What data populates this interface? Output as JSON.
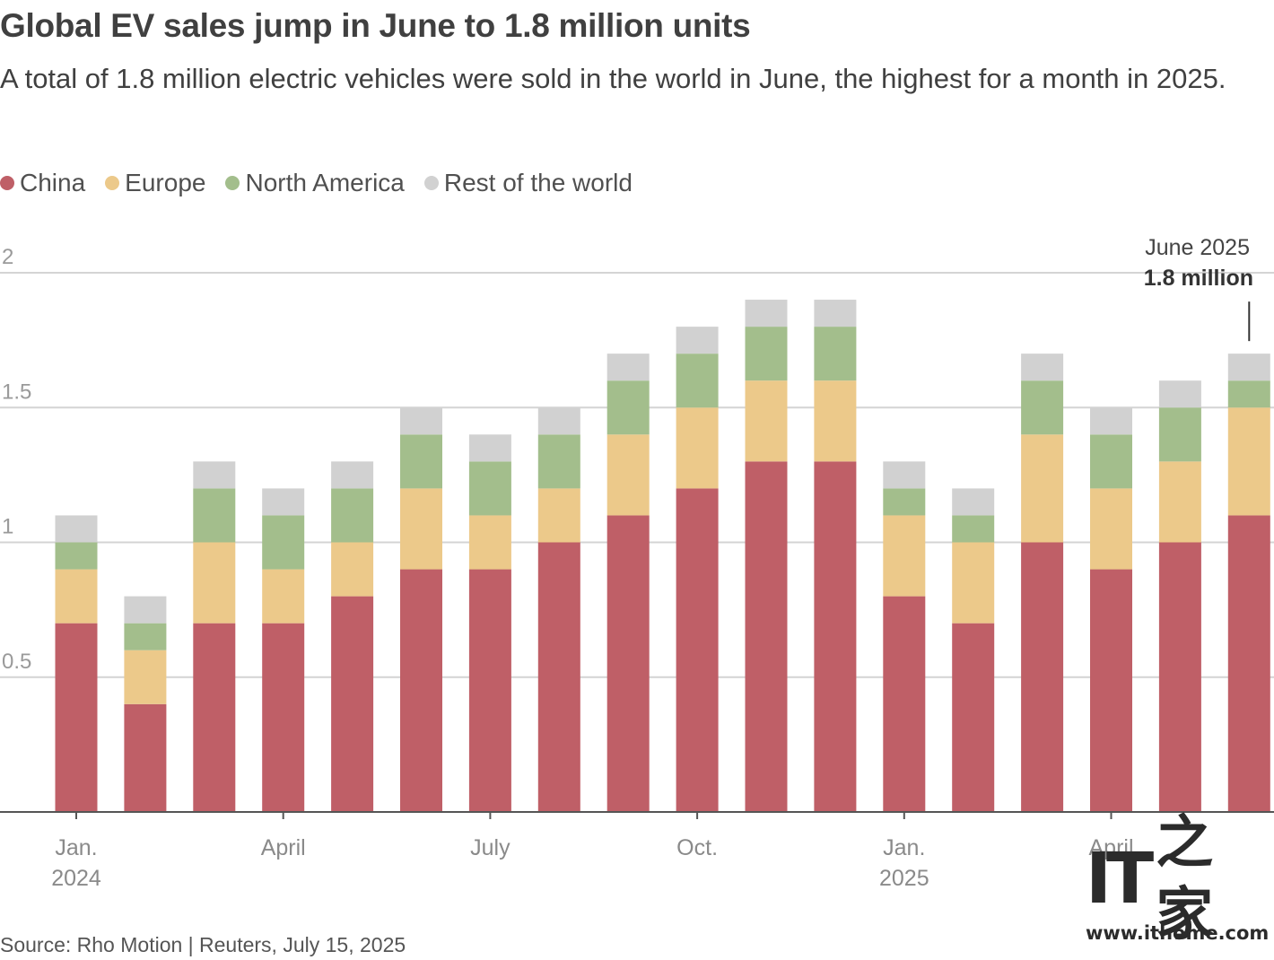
{
  "header": {
    "title": "Global EV sales jump in June to 1.8 million units",
    "subtitle": "A total of 1.8 million electric vehicles were sold in the world in June, the highest for a month in 2025."
  },
  "legend": [
    {
      "label": "China",
      "color": "#bf5f67"
    },
    {
      "label": "Europe",
      "color": "#ecc98a"
    },
    {
      "label": "North America",
      "color": "#a3be8c"
    },
    {
      "label": "Rest of the world",
      "color": "#d1d1d1"
    }
  ],
  "chart_data": {
    "type": "bar",
    "stacked": true,
    "unit": "million units",
    "ylim": [
      0,
      2
    ],
    "yticks": [
      0.5,
      1,
      1.5,
      2
    ],
    "ytick_labels": [
      "0.5",
      "1",
      "1.5",
      "2"
    ],
    "grid": true,
    "legend_position": "top-left",
    "categories": [
      "2024-01",
      "2024-02",
      "2024-03",
      "2024-04",
      "2024-05",
      "2024-06",
      "2024-07",
      "2024-08",
      "2024-09",
      "2024-10",
      "2024-11",
      "2024-12",
      "2025-01",
      "2025-02",
      "2025-03",
      "2025-04",
      "2025-05",
      "2025-06"
    ],
    "x_tick_labels": [
      {
        "category": "2024-01",
        "lines": [
          "Jan.",
          "2024"
        ]
      },
      {
        "category": "2024-04",
        "lines": [
          "April"
        ]
      },
      {
        "category": "2024-07",
        "lines": [
          "July"
        ]
      },
      {
        "category": "2024-10",
        "lines": [
          "Oct."
        ]
      },
      {
        "category": "2025-01",
        "lines": [
          "Jan.",
          "2025"
        ]
      },
      {
        "category": "2025-04",
        "lines": [
          "April"
        ]
      }
    ],
    "series": [
      {
        "name": "China",
        "color": "#bf5f67",
        "values": [
          0.7,
          0.4,
          0.7,
          0.7,
          0.8,
          0.9,
          0.9,
          1.0,
          1.1,
          1.2,
          1.3,
          1.3,
          0.8,
          0.7,
          1.0,
          0.9,
          1.0,
          1.1
        ]
      },
      {
        "name": "Europe",
        "color": "#ecc98a",
        "values": [
          0.2,
          0.2,
          0.3,
          0.2,
          0.2,
          0.3,
          0.2,
          0.2,
          0.3,
          0.3,
          0.3,
          0.3,
          0.3,
          0.3,
          0.4,
          0.3,
          0.3,
          0.4
        ]
      },
      {
        "name": "North America",
        "color": "#a3be8c",
        "values": [
          0.1,
          0.1,
          0.2,
          0.2,
          0.2,
          0.2,
          0.2,
          0.2,
          0.2,
          0.2,
          0.2,
          0.2,
          0.1,
          0.1,
          0.2,
          0.2,
          0.2,
          0.1
        ]
      },
      {
        "name": "Rest of the world",
        "color": "#d1d1d1",
        "values": [
          0.1,
          0.1,
          0.1,
          0.1,
          0.1,
          0.1,
          0.1,
          0.1,
          0.1,
          0.1,
          0.1,
          0.1,
          0.1,
          0.1,
          0.1,
          0.1,
          0.1,
          0.1
        ]
      }
    ],
    "annotation": {
      "category": "2025-06",
      "label": "June 2025",
      "value_text": "1.8 million"
    }
  },
  "footer": {
    "source": "Source: Rho Motion | Reuters, July 15, 2025"
  },
  "watermark": {
    "logo_latin": "IT",
    "logo_cjk": "之家",
    "url": "www.ithome.com"
  }
}
